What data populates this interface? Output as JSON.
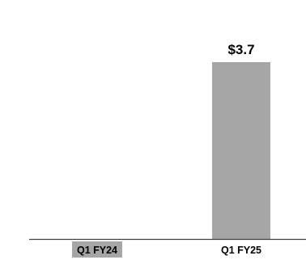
{
  "chart_data": {
    "type": "bar",
    "categories": [
      "Q1 FY24",
      "Q1 FY25"
    ],
    "values": [
      0,
      3.7
    ],
    "data_labels": [
      "",
      "$3.7"
    ],
    "highlighted_category_index": 0,
    "colors": {
      "bar": "#a6a6a6",
      "axis": "#404040",
      "text": "#000000"
    },
    "grid": false
  }
}
